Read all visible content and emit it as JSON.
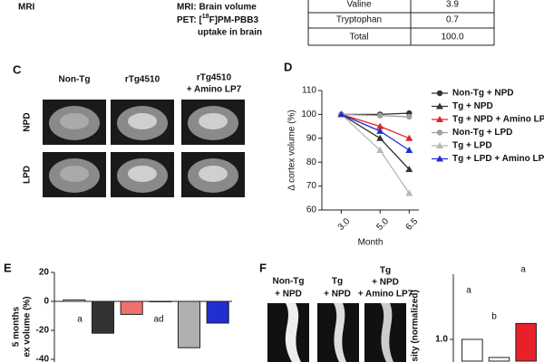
{
  "top": {
    "label": "MRI",
    "mri_text": "MRI: Brain volume",
    "pet_text_1": "PET: [",
    "pet_sup": "18",
    "pet_text_2": "F]PM-PBB3",
    "pet_text_3": "uptake in brain"
  },
  "table": {
    "rows": [
      [
        "Valine",
        "3.9"
      ],
      [
        "Tryptophan",
        "0.7"
      ],
      [
        "Total",
        "100.0"
      ]
    ]
  },
  "panel_c": {
    "panel": "C",
    "columns": [
      [
        "Non-Tg"
      ],
      [
        "rTg4510"
      ],
      [
        "rTg4510",
        "+ Amino LP7"
      ]
    ],
    "rows": [
      "NPD",
      "LPD"
    ]
  },
  "panel_f": {
    "panel": "F",
    "columns": [
      [
        "Non-Tg",
        "+ NPD"
      ],
      [
        "Tg",
        "+ NPD"
      ],
      [
        "Tg",
        "+ NPD",
        "+ Amino LP7"
      ]
    ]
  },
  "chart_data": [
    {
      "type": "line",
      "panel": "D",
      "y_label": "Δ cortex volume (%)",
      "x_label": "Month",
      "x": [
        3,
        5,
        6.5
      ],
      "xlim": [
        2,
        7
      ],
      "xticks": [
        {
          "value": 3,
          "label": "3.0"
        },
        {
          "value": 5,
          "label": "5.0"
        },
        {
          "value": 6.5,
          "label": "6.5"
        }
      ],
      "ylim": [
        60,
        110
      ],
      "yticks": [
        60,
        70,
        80,
        90,
        100,
        110
      ],
      "legend": "right",
      "series": [
        {
          "name": "Non-Tg + NPD",
          "color": "#333333",
          "marker": "circle",
          "values": [
            100,
            100,
            100.5
          ]
        },
        {
          "name": "Tg + NPD",
          "color": "#333333",
          "marker": "triangle",
          "values": [
            100,
            90,
            77
          ]
        },
        {
          "name": "Tg + NPD + Amino LP7",
          "color": "#e8202a",
          "marker": "triangle",
          "values": [
            100,
            95,
            90
          ]
        },
        {
          "name": "Non-Tg + LPD",
          "color": "#a0a0a0",
          "marker": "circle",
          "values": [
            100,
            99.5,
            99
          ]
        },
        {
          "name": "Tg + LPD",
          "color": "#b8b8b8",
          "marker": "triangle",
          "values": [
            100,
            85,
            67
          ]
        },
        {
          "name": "Tg + LPD + Amino LP7",
          "color": "#1f2fd0",
          "marker": "triangle",
          "values": [
            100,
            93,
            85
          ]
        }
      ]
    },
    {
      "type": "bar",
      "panel": "E",
      "y_label": "5 months",
      "y_label_2": "ex volume (%)",
      "ylim": [
        -40,
        20
      ],
      "yticks": [
        -40,
        -20,
        0,
        20
      ],
      "values": [
        1,
        -22,
        -9,
        0,
        -32,
        -15
      ],
      "colors": [
        "#ffffff",
        "#333333",
        "#f07070",
        "#ffffff",
        "#b0b0b0",
        "#1f2fd0"
      ],
      "annotations": [
        "a",
        "ad"
      ]
    },
    {
      "type": "bar",
      "panel": "",
      "y_label": "nsity (normalized)",
      "ylim": [
        0.7,
        1.9
      ],
      "yticks": [
        {
          "value": 1,
          "label": "1.0"
        }
      ],
      "values": [
        1,
        0.75,
        1.22
      ],
      "colors": [
        "#ffffff",
        "#ffffff",
        "#e8202a"
      ],
      "annotations": [
        "a",
        "b",
        "a"
      ]
    }
  ]
}
